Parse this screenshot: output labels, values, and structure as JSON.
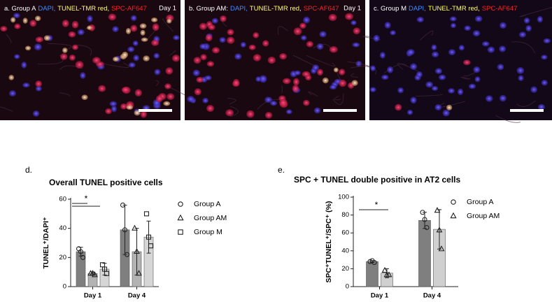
{
  "panels": [
    {
      "label": "a. Group A",
      "stains": [
        "DAPI,",
        "TUNEL-TMR red,",
        "SPC-AF647"
      ],
      "day": "Day 1"
    },
    {
      "label": "b. Group AM:",
      "stains": [
        "DAPI,",
        "TUNEL-TMR red,",
        "SPC-AF647"
      ],
      "day": "Day 1"
    },
    {
      "label": "c. Group M",
      "stains": [
        "DAPI,",
        "TUNEL-TMR red,",
        "SPC-AF647"
      ],
      "day": null
    }
  ],
  "chart_data": [
    {
      "type": "bar",
      "panel": "d.",
      "title": "Overall TUNEL positive cells",
      "y_label": "TUNEL⁺/DAPI⁺",
      "categories": [
        "Day 1",
        "Day 4"
      ],
      "ylim": [
        0,
        60
      ],
      "yticks": [
        0,
        20,
        40,
        60
      ],
      "annotation": "*",
      "series": [
        {
          "name": "Group A",
          "color": "#7f7f7f",
          "marker": "circle",
          "values": [
            24,
            39
          ],
          "errors": [
            3,
            17
          ],
          "points": [
            [
              26,
              24,
              20
            ],
            [
              56,
              39,
              22
            ]
          ]
        },
        {
          "name": "Group AM",
          "color": "#b3b3b3",
          "marker": "triangle",
          "values": [
            9,
            24
          ],
          "errors": [
            1,
            16
          ],
          "points": [
            [
              9,
              9,
              8
            ],
            [
              40,
              24,
              9
            ]
          ]
        },
        {
          "name": "Group M",
          "color": "#d6d6d6",
          "marker": "square",
          "values": [
            12,
            34
          ],
          "errors": [
            4,
            11
          ],
          "points": [
            [
              15,
              12,
              9
            ],
            [
              50,
              34,
              28
            ]
          ]
        }
      ]
    },
    {
      "type": "bar",
      "panel": "e.",
      "title": "SPC + TUNEL double positive in AT2 cells",
      "y_label": "SPC⁺TUNEL⁺/SPC⁺ (%)",
      "categories": [
        "Day 1",
        "Day 4"
      ],
      "ylim": [
        0,
        100
      ],
      "yticks": [
        0,
        20,
        40,
        60,
        80,
        100
      ],
      "annotation": "*",
      "series": [
        {
          "name": "Group A",
          "color": "#7f7f7f",
          "marker": "circle",
          "values": [
            28,
            74
          ],
          "errors": [
            1,
            9
          ],
          "points": [
            [
              28,
              29,
              27
            ],
            [
              83,
              75,
              66
            ]
          ]
        },
        {
          "name": "Group AM",
          "color": "#d0d0d0",
          "marker": "triangle",
          "values": [
            15,
            64
          ],
          "errors": [
            5,
            22
          ],
          "points": [
            [
              18,
              13,
              13
            ],
            [
              85,
              63,
              42
            ]
          ]
        }
      ]
    }
  ]
}
